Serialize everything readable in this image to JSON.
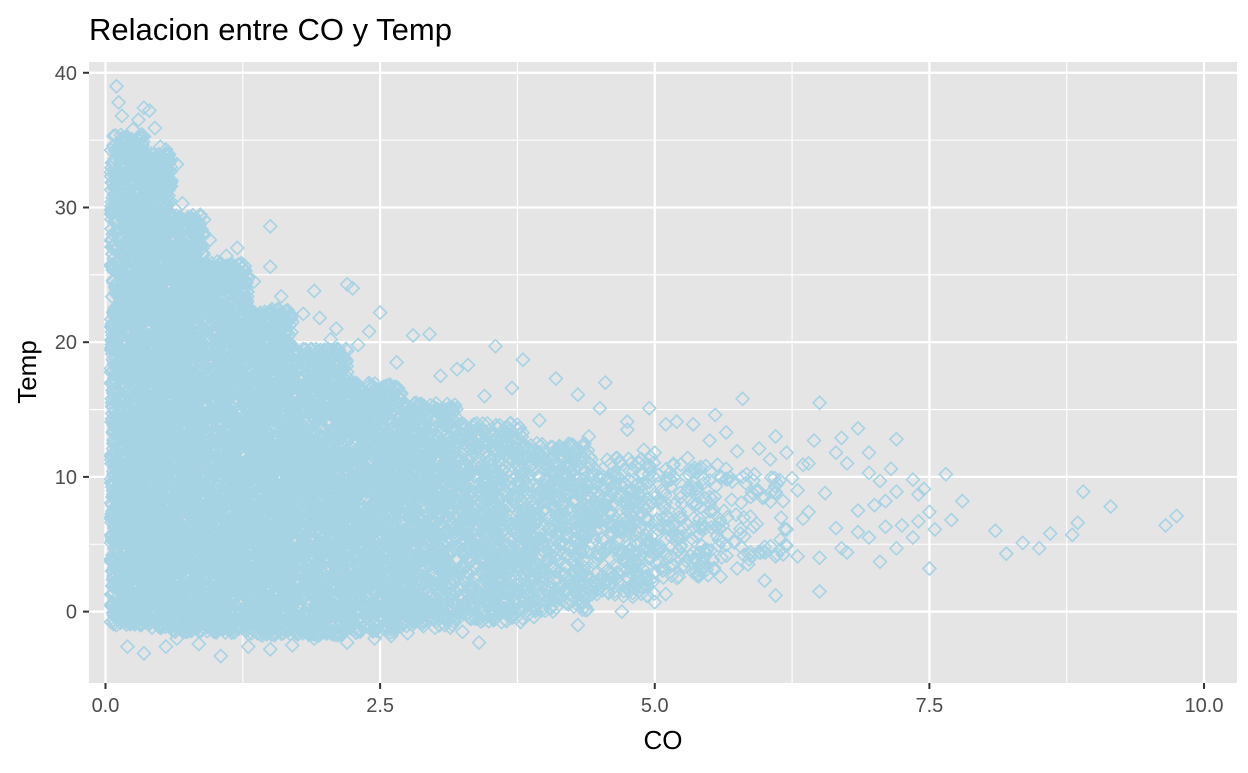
{
  "chart_data": {
    "type": "scatter",
    "title": "Relacion entre CO y Temp",
    "xlabel": "CO",
    "ylabel": "Temp",
    "xlim": [
      -0.15,
      10.3
    ],
    "ylim": [
      -5.3,
      40.8
    ],
    "x_ticks": [
      0,
      2.5,
      5,
      7.5,
      10
    ],
    "x_tick_labels": [
      "0.0",
      "2.5",
      "5.0",
      "7.5",
      "10.0"
    ],
    "y_ticks": [
      0,
      10,
      20,
      30,
      40
    ],
    "y_tick_labels": [
      "0",
      "10",
      "20",
      "30",
      "40"
    ],
    "grid": true,
    "legend": "none",
    "marker": "diamond-open",
    "colors": {
      "panel": "#E5E5E5",
      "grid": "#FFFFFF",
      "points": "#A6D3E4",
      "text": "#1A1A1A",
      "tick_text": "#4D4D4D"
    },
    "series": [
      {
        "points": [
          [
            0.1,
            39.0
          ],
          [
            0.35,
            37.4
          ],
          [
            0.4,
            37.2
          ],
          [
            0.12,
            37.8
          ],
          [
            0.3,
            36.5
          ],
          [
            1.5,
            28.6
          ],
          [
            1.5,
            25.6
          ],
          [
            1.2,
            27.0
          ],
          [
            1.6,
            23.4
          ],
          [
            1.9,
            23.8
          ],
          [
            2.2,
            24.3
          ],
          [
            2.25,
            24.0
          ],
          [
            2.5,
            22.2
          ],
          [
            1.8,
            22.1
          ],
          [
            1.7,
            21.5
          ],
          [
            2.8,
            20.5
          ],
          [
            2.95,
            20.6
          ],
          [
            2.4,
            20.8
          ],
          [
            2.1,
            21.0
          ],
          [
            3.55,
            19.7
          ],
          [
            3.8,
            18.7
          ],
          [
            3.3,
            18.3
          ],
          [
            3.2,
            18.0
          ],
          [
            4.1,
            17.3
          ],
          [
            4.55,
            17.0
          ],
          [
            3.7,
            16.6
          ],
          [
            4.3,
            16.1
          ],
          [
            4.5,
            15.1
          ],
          [
            4.95,
            15.1
          ],
          [
            5.8,
            15.8
          ],
          [
            6.5,
            15.5
          ],
          [
            5.55,
            14.6
          ],
          [
            5.2,
            14.1
          ],
          [
            5.1,
            13.9
          ],
          [
            4.75,
            14.1
          ],
          [
            5.35,
            13.9
          ],
          [
            5.65,
            13.3
          ],
          [
            6.1,
            13.0
          ],
          [
            6.45,
            12.7
          ],
          [
            6.7,
            12.9
          ],
          [
            6.85,
            13.6
          ],
          [
            7.2,
            12.8
          ],
          [
            6.95,
            11.8
          ],
          [
            6.4,
            11.0
          ],
          [
            6.65,
            11.8
          ],
          [
            6.2,
            11.8
          ],
          [
            5.95,
            12.1
          ],
          [
            5.5,
            12.7
          ],
          [
            6.05,
            11.3
          ],
          [
            5.0,
            11.8
          ],
          [
            4.9,
            12.0
          ],
          [
            4.4,
            13.0
          ],
          [
            5.3,
            11.4
          ],
          [
            5.75,
            11.9
          ],
          [
            6.35,
            10.9
          ],
          [
            6.75,
            11.0
          ],
          [
            6.95,
            10.3
          ],
          [
            7.05,
            9.7
          ],
          [
            7.15,
            10.6
          ],
          [
            7.35,
            9.8
          ],
          [
            7.45,
            9.1
          ],
          [
            7.65,
            10.2
          ],
          [
            7.8,
            8.2
          ],
          [
            7.4,
            8.7
          ],
          [
            7.2,
            8.9
          ],
          [
            7.1,
            8.2
          ],
          [
            7.0,
            7.9
          ],
          [
            6.85,
            7.5
          ],
          [
            6.55,
            8.8
          ],
          [
            6.3,
            9.0
          ],
          [
            6.1,
            8.8
          ],
          [
            6.0,
            8.5
          ],
          [
            5.9,
            8.7
          ],
          [
            5.7,
            8.3
          ],
          [
            5.5,
            8.0
          ],
          [
            5.3,
            9.0
          ],
          [
            6.4,
            7.4
          ],
          [
            6.65,
            6.2
          ],
          [
            6.85,
            5.9
          ],
          [
            6.95,
            5.5
          ],
          [
            7.1,
            6.3
          ],
          [
            7.25,
            6.4
          ],
          [
            7.4,
            6.7
          ],
          [
            7.5,
            7.4
          ],
          [
            7.55,
            6.1
          ],
          [
            7.7,
            6.8
          ],
          [
            7.35,
            5.5
          ],
          [
            7.2,
            4.7
          ],
          [
            7.05,
            3.7
          ],
          [
            7.5,
            3.2
          ],
          [
            6.75,
            4.4
          ],
          [
            6.7,
            4.7
          ],
          [
            6.5,
            4.0
          ],
          [
            6.3,
            4.1
          ],
          [
            6.2,
            4.9
          ],
          [
            6.0,
            4.8
          ],
          [
            5.85,
            3.5
          ],
          [
            5.75,
            3.2
          ],
          [
            5.6,
            2.6
          ],
          [
            5.45,
            4.0
          ],
          [
            5.2,
            2.5
          ],
          [
            5.1,
            1.3
          ],
          [
            5.0,
            0.7
          ],
          [
            6.1,
            1.2
          ],
          [
            6.0,
            2.3
          ],
          [
            6.5,
            1.5
          ],
          [
            4.7,
            0.0
          ],
          [
            4.3,
            -1.0
          ],
          [
            3.9,
            -0.4
          ],
          [
            3.4,
            -2.3
          ],
          [
            8.1,
            6.0
          ],
          [
            8.2,
            4.3
          ],
          [
            8.35,
            5.1
          ],
          [
            8.5,
            4.7
          ],
          [
            8.6,
            5.8
          ],
          [
            8.8,
            5.7
          ],
          [
            8.85,
            6.6
          ],
          [
            8.9,
            8.9
          ],
          [
            9.15,
            7.8
          ],
          [
            9.65,
            6.4
          ],
          [
            9.75,
            7.1
          ],
          [
            5.4,
            6.3
          ],
          [
            5.25,
            7.0
          ],
          [
            5.6,
            5.2
          ],
          [
            5.9,
            6.3
          ],
          [
            6.2,
            6.1
          ],
          [
            6.35,
            6.9
          ],
          [
            5.65,
            10.6
          ],
          [
            5.8,
            10.0
          ],
          [
            6.25,
            9.9
          ],
          [
            4.85,
            5.8
          ],
          [
            4.95,
            4.5
          ],
          [
            5.15,
            3.5
          ],
          [
            5.35,
            2.9
          ],
          [
            4.6,
            2.5
          ],
          [
            4.45,
            1.7
          ],
          [
            4.8,
            1.1
          ],
          [
            4.2,
            0.6
          ],
          [
            3.65,
            -0.7
          ],
          [
            3.0,
            -1.2
          ],
          [
            2.6,
            -1.8
          ],
          [
            2.2,
            -2.3
          ],
          [
            1.9,
            -2.0
          ],
          [
            1.5,
            -2.8
          ],
          [
            1.3,
            -2.6
          ],
          [
            1.05,
            -3.3
          ],
          [
            0.85,
            -2.4
          ],
          [
            0.65,
            -2.0
          ],
          [
            0.35,
            -3.1
          ],
          [
            0.2,
            -2.6
          ],
          [
            0.1,
            -1.0
          ],
          [
            0.55,
            -2.6
          ],
          [
            1.7,
            -2.5
          ],
          [
            2.45,
            -2.0
          ],
          [
            2.75,
            -1.6
          ],
          [
            3.25,
            -1.5
          ],
          [
            3.85,
            -0.2
          ],
          [
            4.05,
            0.2
          ],
          [
            4.75,
            13.5
          ],
          [
            4.35,
            12.4
          ],
          [
            3.95,
            14.2
          ],
          [
            3.45,
            16.0
          ],
          [
            3.05,
            17.5
          ],
          [
            2.65,
            18.5
          ],
          [
            2.3,
            19.8
          ],
          [
            2.05,
            20.2
          ],
          [
            1.95,
            21.8
          ],
          [
            1.35,
            24.5
          ],
          [
            1.1,
            26.4
          ],
          [
            0.95,
            27.6
          ],
          [
            0.8,
            28.9
          ],
          [
            0.7,
            30.3
          ],
          [
            0.6,
            32.0
          ],
          [
            0.5,
            34.5
          ],
          [
            0.25,
            35.8
          ],
          [
            0.15,
            36.8
          ],
          [
            0.45,
            35.9
          ],
          [
            0.55,
            34.3
          ],
          [
            0.65,
            33.2
          ]
        ],
        "dense_regions": [
          {
            "x_range": [
              0.05,
              0.35
            ],
            "y_range": [
              -1.0,
              35.5
            ],
            "n": 1600
          },
          {
            "x_range": [
              0.35,
              0.6
            ],
            "y_range": [
              -1.2,
              34.0
            ],
            "n": 1400
          },
          {
            "x_range": [
              0.6,
              0.9
            ],
            "y_range": [
              -1.5,
              29.5
            ],
            "n": 1300
          },
          {
            "x_range": [
              0.9,
              1.3
            ],
            "y_range": [
              -1.6,
              26.0
            ],
            "n": 1400
          },
          {
            "x_range": [
              1.3,
              1.7
            ],
            "y_range": [
              -1.8,
              22.5
            ],
            "n": 1300
          },
          {
            "x_range": [
              1.7,
              2.2
            ],
            "y_range": [
              -1.8,
              19.5
            ],
            "n": 1300
          },
          {
            "x_range": [
              2.2,
              2.7
            ],
            "y_range": [
              -1.6,
              17.0
            ],
            "n": 1100
          },
          {
            "x_range": [
              2.7,
              3.2
            ],
            "y_range": [
              -1.2,
              15.5
            ],
            "n": 900
          },
          {
            "x_range": [
              3.2,
              3.8
            ],
            "y_range": [
              -0.8,
              14.0
            ],
            "n": 750
          },
          {
            "x_range": [
              3.8,
              4.4
            ],
            "y_range": [
              0.0,
              12.5
            ],
            "n": 520
          },
          {
            "x_range": [
              4.4,
              5.0
            ],
            "y_range": [
              1.0,
              11.5
            ],
            "n": 330
          },
          {
            "x_range": [
              5.0,
              5.6
            ],
            "y_range": [
              2.5,
              11.0
            ],
            "n": 160
          },
          {
            "x_range": [
              5.6,
              6.2
            ],
            "y_range": [
              3.5,
              10.5
            ],
            "n": 60
          }
        ]
      }
    ]
  }
}
